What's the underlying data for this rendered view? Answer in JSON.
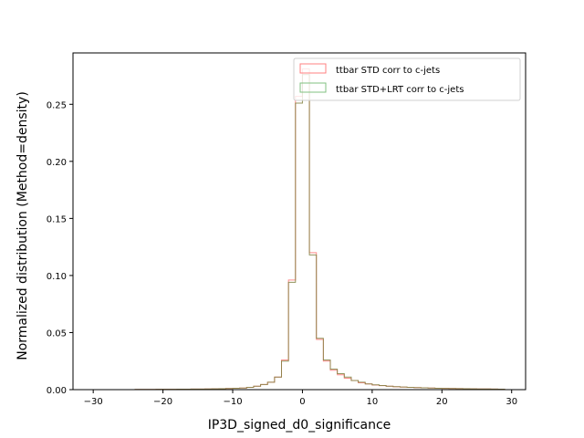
{
  "chart_data": {
    "type": "histogram",
    "title": "",
    "xlabel": "IP3D_signed_d0_significance",
    "ylabel": "Normalized distribution (Method=density)",
    "xlim": [
      -32.9,
      32.0
    ],
    "ylim": [
      0.0,
      0.295
    ],
    "xticks": [
      -30,
      -20,
      -10,
      0,
      10,
      20,
      30
    ],
    "yticks": [
      0.0,
      0.05,
      0.1,
      0.15,
      0.2,
      0.25
    ],
    "ytick_labels": [
      "0.00",
      "0.05",
      "0.10",
      "0.15",
      "0.20",
      "0.25"
    ],
    "grid": false,
    "legend_position": "top-right",
    "bin_edges": [
      -30,
      -29,
      -28,
      -27,
      -26,
      -25,
      -24,
      -23,
      -22,
      -21,
      -20,
      -19,
      -18,
      -17,
      -16,
      -15,
      -14,
      -13,
      -12,
      -11,
      -10,
      -9,
      -8,
      -7,
      -6,
      -5,
      -4,
      -3,
      -2,
      -1,
      0,
      1,
      2,
      3,
      4,
      5,
      6,
      7,
      8,
      9,
      10,
      11,
      12,
      13,
      14,
      15,
      16,
      17,
      18,
      19,
      20,
      21,
      22,
      23,
      24,
      25,
      26,
      27,
      28,
      29
    ],
    "series": [
      {
        "name": "ttbar STD corr to c-jets",
        "color": "#ff8080",
        "values": [
          0,
          0,
          0,
          0,
          0,
          0,
          0.0002,
          0.0002,
          0.0002,
          0.0003,
          0.0003,
          0.0003,
          0.0004,
          0.0004,
          0.0005,
          0.0005,
          0.0006,
          0.0007,
          0.0008,
          0.001,
          0.0012,
          0.0014,
          0.002,
          0.003,
          0.0045,
          0.0065,
          0.011,
          0.026,
          0.096,
          0.257,
          0.281,
          0.12,
          0.044,
          0.025,
          0.017,
          0.013,
          0.01,
          0.008,
          0.006,
          0.005,
          0.004,
          0.0035,
          0.003,
          0.0025,
          0.0022,
          0.002,
          0.0018,
          0.0016,
          0.0014,
          0.0012,
          0.0011,
          0.001,
          0.0009,
          0.0008,
          0.0007,
          0.0006,
          0.0006,
          0.0005,
          0.0004
        ]
      },
      {
        "name": "ttbar STD+LRT corr to c-jets",
        "color": "#80c080",
        "values": [
          0,
          0,
          0,
          0,
          0,
          0,
          0.0002,
          0.0002,
          0.0002,
          0.0003,
          0.0003,
          0.0003,
          0.0004,
          0.0004,
          0.0005,
          0.0005,
          0.0006,
          0.0007,
          0.0008,
          0.001,
          0.0012,
          0.0014,
          0.002,
          0.003,
          0.0045,
          0.0065,
          0.011,
          0.025,
          0.094,
          0.251,
          0.276,
          0.118,
          0.045,
          0.026,
          0.018,
          0.014,
          0.011,
          0.008,
          0.0065,
          0.005,
          0.0042,
          0.0036,
          0.003,
          0.0026,
          0.0023,
          0.002,
          0.0018,
          0.0016,
          0.0014,
          0.0012,
          0.0011,
          0.001,
          0.0009,
          0.0008,
          0.0007,
          0.0006,
          0.0006,
          0.0005,
          0.0004
        ]
      }
    ]
  },
  "overlap_color": "#808040"
}
